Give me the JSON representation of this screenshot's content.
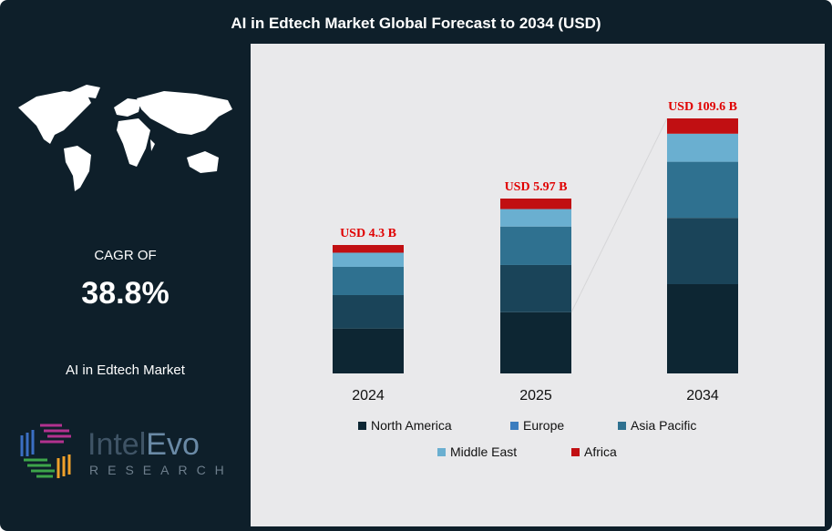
{
  "title": "AI in Edtech Market Global Forecast to 2034 (USD)",
  "left": {
    "cagr_label": "CAGR OF",
    "cagr_value": "38.8%",
    "market_label": "AI in Edtech Market",
    "logo_text": "IntelEvo RESEARCH"
  },
  "chart_data": {
    "type": "bar",
    "stacked": true,
    "title": "",
    "categories": [
      "2024",
      "2025",
      "2034"
    ],
    "totals": [
      4.3,
      5.97,
      109.6
    ],
    "total_labels": [
      "USD 4.3 B",
      "USD 5.97 B",
      "USD 109.6 B"
    ],
    "unit": "USD B",
    "segment_shares_note_free": true,
    "series": [
      {
        "name": "North America",
        "color": "#0d2633",
        "shares": [
          0.35,
          0.35,
          0.35
        ]
      },
      {
        "name": "Europe",
        "color": "#1a4459",
        "legend_color": "#3b7dbf",
        "shares": [
          0.26,
          0.27,
          0.26
        ]
      },
      {
        "name": "Asia Pacific",
        "color": "#2f7190",
        "shares": [
          0.22,
          0.22,
          0.22
        ]
      },
      {
        "name": "Middle East",
        "color": "#6aafd0",
        "shares": [
          0.11,
          0.1,
          0.11
        ]
      },
      {
        "name": "Africa",
        "color": "#c10f12",
        "shares": [
          0.06,
          0.06,
          0.06
        ]
      }
    ],
    "label_color": "#e00000",
    "grid": false,
    "legend_placement": "bottom"
  }
}
